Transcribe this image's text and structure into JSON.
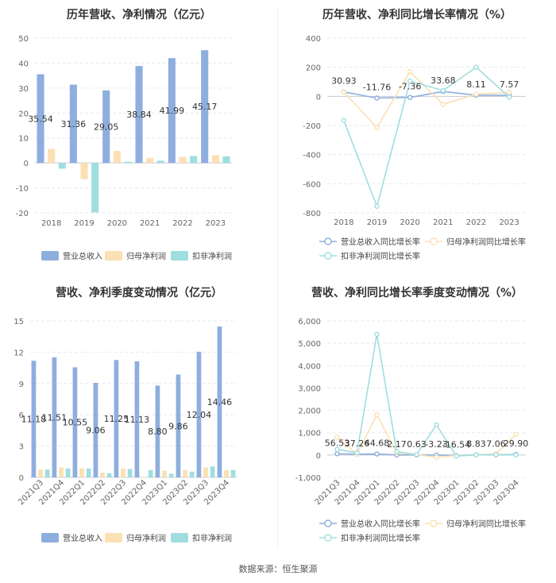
{
  "source": "数据来源：恒生聚源",
  "colors": {
    "revenue": "#8eaede",
    "netprofit": "#fbe0b3",
    "deducted": "#9fdedf",
    "grid": "#e6e9ef",
    "axis": "#666666"
  },
  "chart_data": [
    {
      "type": "bar",
      "title": "历年营收、净利情况（亿元）",
      "categories": [
        "2018",
        "2019",
        "2020",
        "2021",
        "2022",
        "2023"
      ],
      "ylim": [
        -20,
        50
      ],
      "yticks": [
        "-20",
        "-10",
        "0",
        "10",
        "20",
        "30",
        "40",
        "50"
      ],
      "series": [
        {
          "name": "营业总收入",
          "values": [
            35.54,
            31.36,
            29.05,
            38.84,
            41.99,
            45.17
          ],
          "labels": [
            "35.54",
            "31.36",
            "29.05",
            "38.84",
            "41.99",
            "45.17"
          ]
        },
        {
          "name": "归母净利润",
          "values": [
            5.6,
            -6.5,
            4.8,
            2.0,
            2.4,
            3.1
          ]
        },
        {
          "name": "扣非净利润",
          "values": [
            -2.3,
            -19.8,
            0.5,
            0.9,
            2.8,
            2.6
          ]
        }
      ],
      "grid": true,
      "legend": "bottom"
    },
    {
      "type": "line",
      "title": "历年营收、净利同比增长率情况（%）",
      "categories": [
        "2018",
        "2019",
        "2020",
        "2021",
        "2022",
        "2023"
      ],
      "ylim": [
        -800,
        400
      ],
      "yticks": [
        "-800",
        "-600",
        "-400",
        "-200",
        "0",
        "200",
        "400"
      ],
      "series": [
        {
          "name": "营业总收入同比增长率",
          "values": [
            30.93,
            -11.76,
            -7.36,
            33.68,
            8.11,
            7.57
          ],
          "labels": [
            "30.93",
            "-11.76",
            "-7.36",
            "33.68",
            "8.11",
            "7.57"
          ]
        },
        {
          "name": "归母净利润同比增长率",
          "values": [
            30,
            -215,
            170,
            -55,
            15,
            27
          ]
        },
        {
          "name": "扣非净利润同比增长率",
          "values": [
            -165,
            -755,
            105,
            40,
            200,
            -5
          ]
        }
      ],
      "grid": true,
      "legend": "bottom"
    },
    {
      "type": "bar",
      "title": "营收、净利季度变动情况（亿元）",
      "categories": [
        "2021Q3",
        "2021Q4",
        "2022Q1",
        "2022Q2",
        "2022Q3",
        "2022Q4",
        "2023Q1",
        "2023Q2",
        "2023Q3",
        "2023Q4"
      ],
      "ylim": [
        0,
        15
      ],
      "yticks": [
        "0",
        "3",
        "6",
        "9",
        "12",
        "15"
      ],
      "series": [
        {
          "name": "营业总收入",
          "values": [
            11.18,
            11.51,
            10.55,
            9.06,
            11.25,
            11.13,
            8.8,
            9.86,
            12.04,
            14.46
          ],
          "labels": [
            "11.18",
            "11.51",
            "10.55",
            "9.06",
            "11.25",
            "11.13",
            "8.80",
            "9.86",
            "12.04",
            "14.46"
          ]
        },
        {
          "name": "归母净利润",
          "values": [
            0.75,
            0.95,
            0.85,
            0.45,
            0.85,
            0.0,
            0.65,
            0.7,
            0.95,
            0.7
          ]
        },
        {
          "name": "扣非净利润",
          "values": [
            0.75,
            0.85,
            0.85,
            0.4,
            0.8,
            0.7,
            0.35,
            0.55,
            1.05,
            0.7
          ]
        }
      ],
      "grid": true,
      "legend": "bottom"
    },
    {
      "type": "line",
      "title": "营收、净利同比增长率季度变动情况（%）",
      "categories": [
        "2021Q3",
        "2021Q4",
        "2022Q1",
        "2022Q2",
        "2022Q3",
        "2022Q4",
        "2023Q1",
        "2023Q2",
        "2023Q3",
        "2023Q4"
      ],
      "ylim": [
        -1000,
        6000
      ],
      "yticks": [
        "-1,000",
        "0",
        "1,000",
        "2,000",
        "3,000",
        "4,000",
        "5,000",
        "6,000"
      ],
      "series": [
        {
          "name": "营业总收入同比增长率",
          "values": [
            56.53,
            37.26,
            44.68,
            2.17,
            0.63,
            -3.23,
            -16.54,
            8.83,
            7.06,
            29.9
          ],
          "labels": [
            "56.53",
            "37.26",
            "44.68",
            "2.17",
            "0.63",
            "-3.23",
            "-16.54",
            "8.83",
            "7.06",
            "29.90"
          ]
        },
        {
          "name": "归母净利润同比增长率",
          "values": [
            800,
            30,
            1800,
            100,
            20,
            -100,
            -20,
            0,
            60,
            920
          ]
        },
        {
          "name": "扣非净利润同比增长率",
          "values": [
            250,
            100,
            5400,
            150,
            20,
            1350,
            -50,
            10,
            10,
            10
          ]
        }
      ],
      "grid": true,
      "legend": "bottom"
    }
  ]
}
